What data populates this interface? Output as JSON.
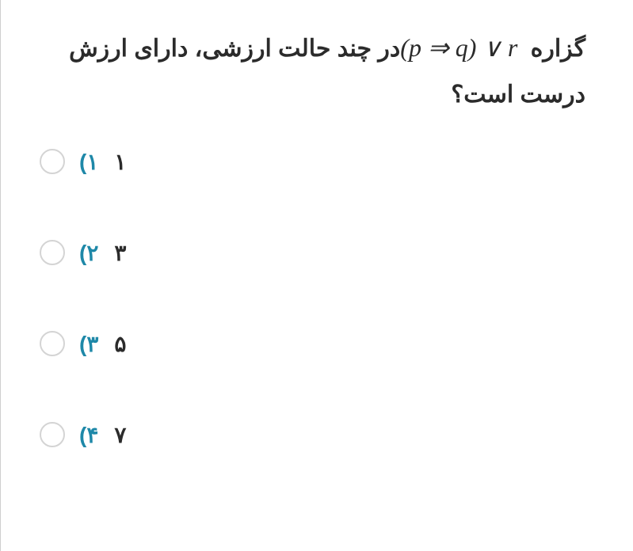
{
  "question": {
    "part1": "گزاره ",
    "formula_parts": {
      "open": "(",
      "p": "p",
      "arrow": " ⇒ ",
      "q": "q",
      "close": ")",
      "or": " ∨ ",
      "r": "r"
    },
    "part2": " در چند حالت ارزشی، دارای ارزش درست است؟"
  },
  "options": [
    {
      "num": "۱)",
      "value": "۱"
    },
    {
      "num": "۲)",
      "value": "۳"
    },
    {
      "num": "۳)",
      "value": "۵"
    },
    {
      "num": "۴)",
      "value": "۷"
    }
  ],
  "colors": {
    "text": "#2b2b2b",
    "option_num": "#1e88a8",
    "radio_border": "#d4d4d4",
    "background": "#ffffff"
  }
}
